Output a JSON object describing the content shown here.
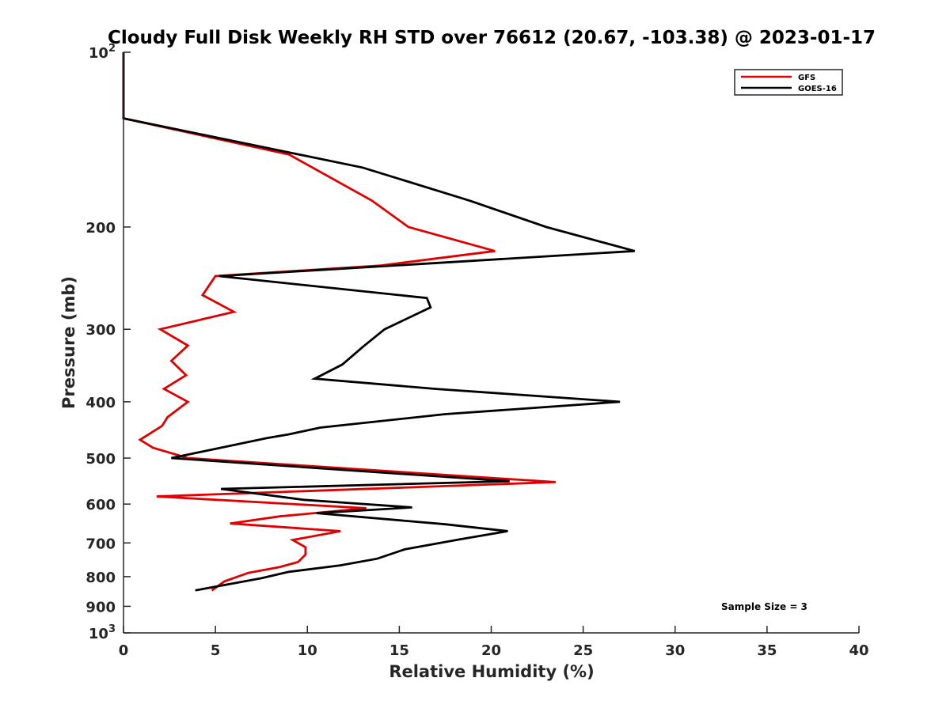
{
  "chart_data": {
    "type": "line",
    "title": "Cloudy Full Disk Weekly RH STD over 76612 (20.67, -103.38) @ 2023-01-17",
    "xlabel": "Relative Humidity (%)",
    "ylabel": "Pressure (mb)",
    "xlim": [
      0,
      40
    ],
    "ylim": [
      100,
      1000
    ],
    "yscale": "log",
    "y_reversed": true,
    "grid": false,
    "legend_position": "top-right",
    "x_ticks": [
      "0",
      "5",
      "10",
      "15",
      "20",
      "25",
      "30",
      "35",
      "40"
    ],
    "y_ticks": [
      {
        "value": 100,
        "base": "10",
        "exp": "2"
      },
      {
        "value": 200,
        "label": "200"
      },
      {
        "value": 300,
        "label": "300"
      },
      {
        "value": 400,
        "label": "400"
      },
      {
        "value": 500,
        "label": "500"
      },
      {
        "value": 600,
        "label": "600"
      },
      {
        "value": 700,
        "label": "700"
      },
      {
        "value": 800,
        "label": "800"
      },
      {
        "value": 900,
        "label": "900"
      },
      {
        "value": 1000,
        "base": "10",
        "exp": "3"
      }
    ],
    "annotation": "Sample Size = 3",
    "series": [
      {
        "name": "GFS",
        "color": "#e00000",
        "points": [
          [
            0,
            100
          ],
          [
            0,
            130
          ],
          [
            9,
            150
          ],
          [
            13.5,
            180
          ],
          [
            15.5,
            200
          ],
          [
            20.2,
            220
          ],
          [
            14,
            233
          ],
          [
            5,
            243
          ],
          [
            4.3,
            262
          ],
          [
            6,
            280
          ],
          [
            2,
            300
          ],
          [
            3.5,
            320
          ],
          [
            2.6,
            340
          ],
          [
            3.4,
            360
          ],
          [
            2.2,
            380
          ],
          [
            3.5,
            400
          ],
          [
            2.4,
            425
          ],
          [
            2.1,
            440
          ],
          [
            0.9,
            465
          ],
          [
            1.6,
            480
          ],
          [
            3.5,
            500
          ],
          [
            23.5,
            550
          ],
          [
            1.8,
            582
          ],
          [
            13.2,
            610
          ],
          [
            8.5,
            630
          ],
          [
            5.8,
            648
          ],
          [
            11.8,
            668
          ],
          [
            9.2,
            692
          ],
          [
            9.9,
            712
          ],
          [
            9.9,
            733
          ],
          [
            9.5,
            755
          ],
          [
            8.5,
            770
          ],
          [
            6.8,
            788
          ],
          [
            5.5,
            815
          ],
          [
            4.8,
            845
          ]
        ]
      },
      {
        "name": "GOES-16",
        "color": "#000000",
        "points": [
          [
            0,
            100
          ],
          [
            0,
            130
          ],
          [
            13,
            158
          ],
          [
            18.8,
            180
          ],
          [
            23,
            200
          ],
          [
            27.8,
            220
          ],
          [
            5.2,
            243
          ],
          [
            16.5,
            265
          ],
          [
            16.7,
            275
          ],
          [
            14.2,
            300
          ],
          [
            13,
            322
          ],
          [
            11.9,
            345
          ],
          [
            10.4,
            365
          ],
          [
            17,
            380
          ],
          [
            27,
            400
          ],
          [
            17.5,
            420
          ],
          [
            10.7,
            443
          ],
          [
            9,
            455
          ],
          [
            7.8,
            462
          ],
          [
            2.6,
            500
          ],
          [
            21,
            548
          ],
          [
            5.3,
            565
          ],
          [
            9.8,
            590
          ],
          [
            15.7,
            608
          ],
          [
            10.5,
            622
          ],
          [
            17.5,
            650
          ],
          [
            20.9,
            668
          ],
          [
            18.3,
            690
          ],
          [
            15.3,
            718
          ],
          [
            13.8,
            745
          ],
          [
            11.8,
            765
          ],
          [
            9,
            785
          ],
          [
            7.5,
            805
          ],
          [
            3.9,
            845
          ]
        ]
      }
    ]
  }
}
